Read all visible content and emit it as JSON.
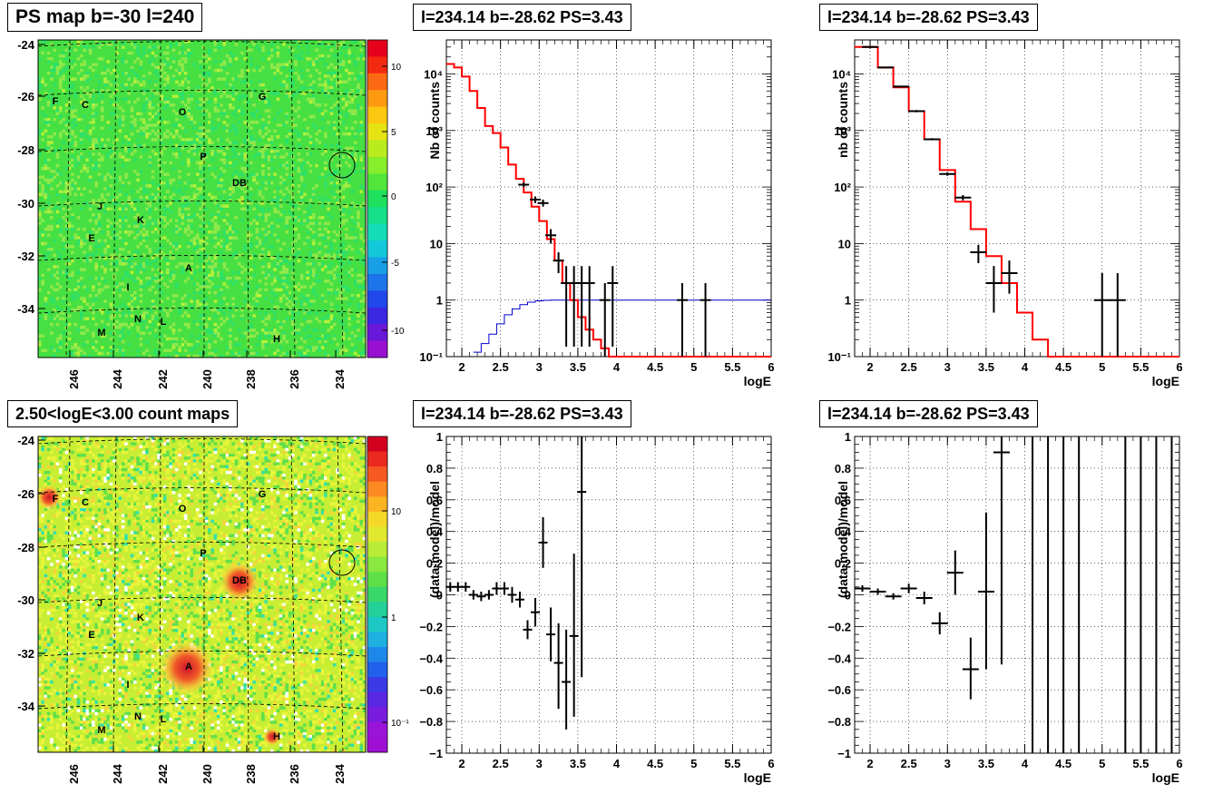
{
  "panels": {
    "map_top": {
      "title": "PS map b=-30 l=240",
      "y_ticks": [
        "-24",
        "-26",
        "-28",
        "-30",
        "-32",
        "-34"
      ],
      "x_ticks": [
        "246",
        "244",
        "242",
        "240",
        "238",
        "236",
        "234"
      ],
      "colorbar_ticks": [
        "10",
        "5",
        "0",
        "-5",
        "-10"
      ],
      "source_labels": [
        "F",
        "C",
        "O",
        "G",
        "P",
        "DB",
        "J",
        "K",
        "E",
        "A",
        "I",
        "N",
        "L",
        "M",
        "H"
      ]
    },
    "map_bottom": {
      "title": "2.50<logE<3.00 count maps",
      "y_ticks": [
        "-24",
        "-26",
        "-28",
        "-30",
        "-32",
        "-34"
      ],
      "x_ticks": [
        "246",
        "244",
        "242",
        "240",
        "238",
        "236",
        "234"
      ],
      "colorbar_ticks": [
        "10",
        "1",
        "10⁻¹"
      ],
      "source_labels": [
        "F",
        "C",
        "O",
        "G",
        "P",
        "DB",
        "J",
        "K",
        "E",
        "A",
        "I",
        "N",
        "L",
        "M",
        "H"
      ]
    },
    "spec_left_title": "l=234.14 b=-28.62 PS=3.43",
    "spec_right_title": "l=234.14 b=-28.62 PS=3.43",
    "res_left_title": "l=234.14 b=-28.62 PS=3.43",
    "res_right_title": "l=234.14 b=-28.62 PS=3.43"
  },
  "chart_data": [
    {
      "type": "scatter",
      "subtype": "histogram-with-errors",
      "ylabel": "Nb of counts",
      "xlabel": "logE",
      "xlim": [
        1.8,
        6
      ],
      "ylim": [
        0.1,
        40000
      ],
      "yscale": "log",
      "grid": true,
      "x_ticks": [
        "2",
        "2.5",
        "3",
        "3.5",
        "4",
        "4.5",
        "5",
        "5.5",
        "6"
      ],
      "y_ticks": [
        "10⁻¹",
        "1",
        "10",
        "10²",
        "10³",
        "10⁴"
      ],
      "series": [
        {
          "role": "data",
          "color": "#000000",
          "points": [
            {
              "x": 2.8,
              "y": 110,
              "lo": 100,
              "hi": 120
            },
            {
              "x": 2.95,
              "y": 60,
              "lo": 52,
              "hi": 68
            },
            {
              "x": 3.05,
              "y": 52,
              "lo": 45,
              "hi": 60
            },
            {
              "x": 3.15,
              "y": 14,
              "lo": 10,
              "hi": 18
            },
            {
              "x": 3.25,
              "y": 5,
              "lo": 3,
              "hi": 7
            },
            {
              "x": 3.35,
              "y": 2,
              "lo": 0.15,
              "hi": 4
            },
            {
              "x": 3.45,
              "y": 2,
              "lo": 0.15,
              "hi": 4
            },
            {
              "x": 3.55,
              "y": 2,
              "lo": 0.15,
              "hi": 4
            },
            {
              "x": 3.65,
              "y": 2,
              "lo": 0.15,
              "hi": 4
            },
            {
              "x": 3.85,
              "y": 1,
              "lo": 0.1,
              "hi": 2
            },
            {
              "x": 3.95,
              "y": 2,
              "lo": 0.15,
              "hi": 4
            },
            {
              "x": 4.85,
              "y": 1,
              "lo": 0.1,
              "hi": 2
            },
            {
              "x": 5.15,
              "y": 1,
              "lo": 0.1,
              "hi": 2
            }
          ]
        },
        {
          "role": "model",
          "color": "#ff0000",
          "edges": [
            1.8,
            1.9,
            2.0,
            2.1,
            2.2,
            2.3,
            2.4,
            2.5,
            2.6,
            2.7,
            2.8,
            2.9,
            3.0,
            3.1,
            3.2,
            3.3,
            3.4,
            3.5,
            3.6,
            3.7,
            3.8,
            3.9,
            4.0,
            6.0
          ],
          "values": [
            15000,
            13000,
            9000,
            5000,
            2500,
            1200,
            900,
            500,
            250,
            140,
            80,
            45,
            25,
            12,
            5,
            2,
            1,
            0.5,
            0.3,
            0.2,
            0.14,
            0.1,
            0.1
          ]
        },
        {
          "role": "efficiency",
          "color": "#0000cc",
          "edges": [
            2.15,
            2.25,
            2.35,
            2.45,
            2.55,
            2.65,
            2.75,
            2.85,
            2.95,
            3.05,
            3.15,
            3.25,
            6.0
          ],
          "values": [
            0.12,
            0.17,
            0.25,
            0.38,
            0.55,
            0.7,
            0.83,
            0.92,
            0.97,
            0.99,
            1,
            1
          ]
        }
      ]
    },
    {
      "type": "scatter",
      "subtype": "histogram-with-errors",
      "ylabel": "nb of counts",
      "xlabel": "logE",
      "xlim": [
        1.8,
        6
      ],
      "ylim": [
        0.1,
        40000
      ],
      "yscale": "log",
      "grid": true,
      "x_ticks": [
        "2",
        "2.5",
        "3",
        "3.5",
        "4",
        "4.5",
        "5",
        "5.5",
        "6"
      ],
      "y_ticks": [
        "10⁻¹",
        "1",
        "10",
        "10²",
        "10³",
        "10⁴"
      ],
      "series": [
        {
          "role": "data",
          "color": "#000000",
          "points": [
            {
              "x": 2.0,
              "y": 30000,
              "lo": 29500,
              "hi": 30500
            },
            {
              "x": 2.2,
              "y": 13000,
              "lo": 12800,
              "hi": 13200
            },
            {
              "x": 2.4,
              "y": 6000,
              "lo": 5900,
              "hi": 6100
            },
            {
              "x": 2.6,
              "y": 2200,
              "lo": 2100,
              "hi": 2300
            },
            {
              "x": 2.8,
              "y": 700,
              "lo": 670,
              "hi": 730
            },
            {
              "x": 3.0,
              "y": 170,
              "lo": 158,
              "hi": 182
            },
            {
              "x": 3.2,
              "y": 65,
              "lo": 58,
              "hi": 72
            },
            {
              "x": 3.4,
              "y": 7,
              "lo": 4.5,
              "hi": 9.5
            },
            {
              "x": 3.6,
              "y": 2,
              "lo": 0.6,
              "hi": 4
            },
            {
              "x": 3.8,
              "y": 3,
              "lo": 1.3,
              "hi": 5
            },
            {
              "x": 5.0,
              "y": 1,
              "lo": 0.1,
              "hi": 3
            },
            {
              "x": 5.2,
              "y": 1,
              "lo": 0.1,
              "hi": 3
            }
          ]
        },
        {
          "role": "model",
          "color": "#ff0000",
          "edges": [
            1.8,
            1.9,
            2.1,
            2.3,
            2.5,
            2.7,
            2.9,
            3.1,
            3.3,
            3.5,
            3.7,
            3.9,
            4.1,
            4.3,
            6.0
          ],
          "values": [
            30000,
            30000,
            13000,
            5800,
            2200,
            700,
            200,
            55,
            18,
            6,
            2,
            0.6,
            0.2,
            0.1
          ]
        }
      ]
    },
    {
      "type": "scatter",
      "subtype": "residuals",
      "ylabel": "(data-model)/model",
      "xlabel": "logE",
      "xlim": [
        1.8,
        6
      ],
      "ylim": [
        -1,
        1
      ],
      "grid": true,
      "x_ticks": [
        "2",
        "2.5",
        "3",
        "3.5",
        "4",
        "4.5",
        "5",
        "5.5",
        "6"
      ],
      "y_ticks": [
        "−1",
        "−0.8",
        "−0.6",
        "−0.4",
        "−0.2",
        "0",
        "0.2",
        "0.4",
        "0.6",
        "0.8",
        "1"
      ],
      "points": [
        {
          "x": 1.85,
          "y": 0.05,
          "lo": 0.02,
          "hi": 0.08
        },
        {
          "x": 1.95,
          "y": 0.05,
          "lo": 0.02,
          "hi": 0.08
        },
        {
          "x": 2.05,
          "y": 0.05,
          "lo": 0.02,
          "hi": 0.08
        },
        {
          "x": 2.15,
          "y": 0.0,
          "lo": -0.03,
          "hi": 0.03
        },
        {
          "x": 2.25,
          "y": -0.01,
          "lo": -0.04,
          "hi": 0.02
        },
        {
          "x": 2.35,
          "y": 0.0,
          "lo": -0.03,
          "hi": 0.03
        },
        {
          "x": 2.45,
          "y": 0.04,
          "lo": 0.0,
          "hi": 0.08
        },
        {
          "x": 2.55,
          "y": 0.04,
          "lo": 0.0,
          "hi": 0.08
        },
        {
          "x": 2.65,
          "y": 0.0,
          "lo": -0.05,
          "hi": 0.05
        },
        {
          "x": 2.75,
          "y": -0.03,
          "lo": -0.08,
          "hi": 0.02
        },
        {
          "x": 2.85,
          "y": -0.22,
          "lo": -0.28,
          "hi": -0.16
        },
        {
          "x": 2.95,
          "y": -0.11,
          "lo": -0.2,
          "hi": -0.02
        },
        {
          "x": 3.05,
          "y": 0.33,
          "lo": 0.17,
          "hi": 0.49
        },
        {
          "x": 3.15,
          "y": -0.25,
          "lo": -0.42,
          "hi": -0.08
        },
        {
          "x": 3.25,
          "y": -0.43,
          "lo": -0.72,
          "hi": -0.18
        },
        {
          "x": 3.35,
          "y": -0.55,
          "lo": -0.85,
          "hi": -0.22
        },
        {
          "x": 3.45,
          "y": -0.26,
          "lo": -0.77,
          "hi": 0.26
        },
        {
          "x": 3.55,
          "y": 0.65,
          "lo": -0.52,
          "hi": 1.0
        }
      ]
    },
    {
      "type": "scatter",
      "subtype": "residuals",
      "ylabel": "(data-model)/model",
      "xlabel": "logE",
      "xlim": [
        1.8,
        6
      ],
      "ylim": [
        -1,
        1
      ],
      "grid": true,
      "x_ticks": [
        "2",
        "2.5",
        "3",
        "3.5",
        "4",
        "4.5",
        "5",
        "5.5",
        "6"
      ],
      "y_ticks": [
        "−1",
        "−0.8",
        "−0.6",
        "−0.4",
        "−0.2",
        "0",
        "0.2",
        "0.4",
        "0.6",
        "0.8",
        "1"
      ],
      "points": [
        {
          "x": 1.9,
          "y": 0.04,
          "lo": 0.02,
          "hi": 0.06
        },
        {
          "x": 2.1,
          "y": 0.02,
          "lo": 0.0,
          "hi": 0.04
        },
        {
          "x": 2.3,
          "y": -0.01,
          "lo": -0.03,
          "hi": 0.01
        },
        {
          "x": 2.5,
          "y": 0.04,
          "lo": 0.01,
          "hi": 0.07
        },
        {
          "x": 2.7,
          "y": -0.02,
          "lo": -0.06,
          "hi": 0.02
        },
        {
          "x": 2.9,
          "y": -0.18,
          "lo": -0.25,
          "hi": -0.11
        },
        {
          "x": 3.1,
          "y": 0.14,
          "lo": 0.0,
          "hi": 0.28
        },
        {
          "x": 3.3,
          "y": -0.47,
          "lo": -0.66,
          "hi": -0.27
        },
        {
          "x": 3.5,
          "y": 0.02,
          "lo": -0.47,
          "hi": 0.52
        },
        {
          "x": 3.7,
          "y": 0.9,
          "lo": -0.44,
          "hi": 1.0
        },
        {
          "x": 4.1,
          "y": null,
          "lo": -1,
          "hi": 1
        },
        {
          "x": 4.3,
          "y": null,
          "lo": -1,
          "hi": 1
        },
        {
          "x": 4.5,
          "y": null,
          "lo": -1,
          "hi": 1
        },
        {
          "x": 4.7,
          "y": null,
          "lo": -1,
          "hi": 1
        },
        {
          "x": 5.3,
          "y": null,
          "lo": -1,
          "hi": 1
        },
        {
          "x": 5.5,
          "y": null,
          "lo": -1,
          "hi": 1
        },
        {
          "x": 5.7,
          "y": null,
          "lo": -1,
          "hi": 1
        },
        {
          "x": 5.9,
          "y": null,
          "lo": -1,
          "hi": 1
        }
      ]
    }
  ]
}
